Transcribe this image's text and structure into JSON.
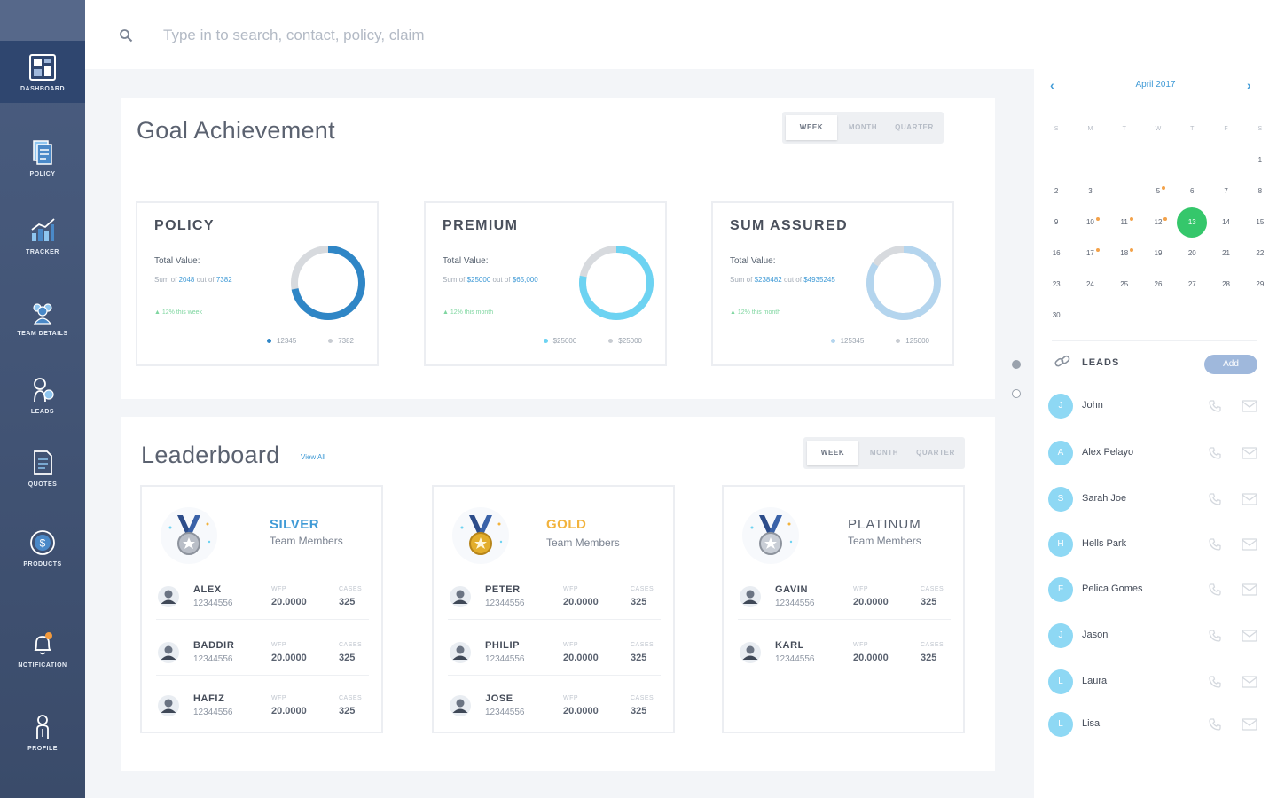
{
  "sidebar": {
    "items": [
      {
        "label": "DASHBOARD",
        "icon": "dashboard-icon"
      },
      {
        "label": "POLICY",
        "icon": "policy-icon"
      },
      {
        "label": "TRACKER",
        "icon": "tracker-icon"
      },
      {
        "label": "TEAM DETAILS",
        "icon": "team-icon"
      },
      {
        "label": "LEADS",
        "icon": "leads-icon"
      },
      {
        "label": "QUOTES",
        "icon": "quotes-icon"
      },
      {
        "label": "PRODUCTS",
        "icon": "products-icon"
      },
      {
        "label": "NOTIFICATION",
        "icon": "bell-icon"
      },
      {
        "label": "PROFILE",
        "icon": "profile-icon"
      }
    ]
  },
  "search": {
    "placeholder": "Type in to search, contact, policy, claim"
  },
  "goal": {
    "title": "Goal Achievement",
    "periods": [
      "WEEK",
      "MONTH",
      "QUARTER"
    ],
    "cards": [
      {
        "title": "POLICY",
        "total_label": "Total Value:",
        "sum_prefix": "Sum of ",
        "sum_value": "2048",
        "sum_mid": " out of ",
        "sum_total": "7382",
        "growth": "12% this week",
        "legend_a": "12345",
        "legend_b": "7382",
        "progress": 0.72,
        "color": "#2f86c6"
      },
      {
        "title": "PREMIUM",
        "total_label": "Total Value:",
        "sum_prefix": "Sum of ",
        "sum_value": "$25000",
        "sum_mid": " out of ",
        "sum_total": "$65,000",
        "growth": "12% this month",
        "legend_a": "$25000",
        "legend_b": "$25000",
        "progress": 0.78,
        "color": "#6dd3f2"
      },
      {
        "title": "SUM ASSURED",
        "total_label": "Total Value:",
        "sum_prefix": "Sum of ",
        "sum_value": "$238482",
        "sum_mid": " out of ",
        "sum_total": "$4935245",
        "growth": "12% this month",
        "legend_a": "125345",
        "legend_b": "125000",
        "progress": 0.84,
        "color": "#b4d5ee"
      }
    ]
  },
  "leaderboard": {
    "title": "Leaderboard",
    "view_all": "View All",
    "periods": [
      "WEEK",
      "MONTH",
      "QUARTER"
    ],
    "metric_a": "WFP",
    "metric_b": "CASES",
    "tiers": [
      {
        "name": "SILVER",
        "sub": "Team Members",
        "color": "#3f9ad6",
        "medal": "#b9bec7",
        "members": [
          {
            "name": "ALEX",
            "id": "12344556",
            "wfp": "20.0000",
            "cases": "325"
          },
          {
            "name": "BADDIR",
            "id": "12344556",
            "wfp": "20.0000",
            "cases": "325"
          },
          {
            "name": "HAFIZ",
            "id": "12344556",
            "wfp": "20.0000",
            "cases": "325"
          }
        ]
      },
      {
        "name": "GOLD",
        "sub": "Team Members",
        "color": "#f2b33d",
        "medal": "#e3ae2c",
        "members": [
          {
            "name": "PETER",
            "id": "12344556",
            "wfp": "20.0000",
            "cases": "325"
          },
          {
            "name": "PHILIP",
            "id": "12344556",
            "wfp": "20.0000",
            "cases": "325"
          },
          {
            "name": "JOSE",
            "id": "12344556",
            "wfp": "20.0000",
            "cases": "325"
          }
        ]
      },
      {
        "name": "PLATINUM",
        "sub": "Team Members",
        "color": "#5a6270",
        "medal": "#c9ced6",
        "members": [
          {
            "name": "GAVIN",
            "id": "12344556",
            "wfp": "20.0000",
            "cases": "325"
          },
          {
            "name": "KARL",
            "id": "12344556",
            "wfp": "20.0000",
            "cases": "325"
          }
        ]
      }
    ]
  },
  "calendar": {
    "month": "April 2017",
    "weekdays": [
      "S",
      "M",
      "T",
      "W",
      "T",
      "F",
      "S"
    ],
    "weeks": [
      [
        "",
        "",
        "",
        "",
        "",
        "",
        "1"
      ],
      [
        "2",
        "3",
        "",
        "5",
        "6",
        "7",
        "8"
      ],
      [
        "9",
        "10",
        "11",
        "12",
        "13",
        "14",
        "15"
      ],
      [
        "16",
        "17",
        "18",
        "19",
        "20",
        "21",
        "22"
      ],
      [
        "23",
        "24",
        "25",
        "26",
        "27",
        "28",
        "29"
      ],
      [
        "30",
        "",
        "",
        "",
        "",
        "",
        ""
      ]
    ],
    "today": "13",
    "events": [
      "5",
      "10",
      "11",
      "12",
      "17",
      "18"
    ]
  },
  "leads": {
    "title": "LEADS",
    "add_label": "Add",
    "items": [
      {
        "initial": "J",
        "name": "John"
      },
      {
        "initial": "A",
        "name": "Alex Pelayo"
      },
      {
        "initial": "S",
        "name": "Sarah Joe"
      },
      {
        "initial": "H",
        "name": "Hells Park"
      },
      {
        "initial": "F",
        "name": "Pelica Gomes"
      },
      {
        "initial": "J",
        "name": "Jason"
      },
      {
        "initial": "L",
        "name": "Laura"
      },
      {
        "initial": "L",
        "name": "Lisa"
      }
    ]
  }
}
